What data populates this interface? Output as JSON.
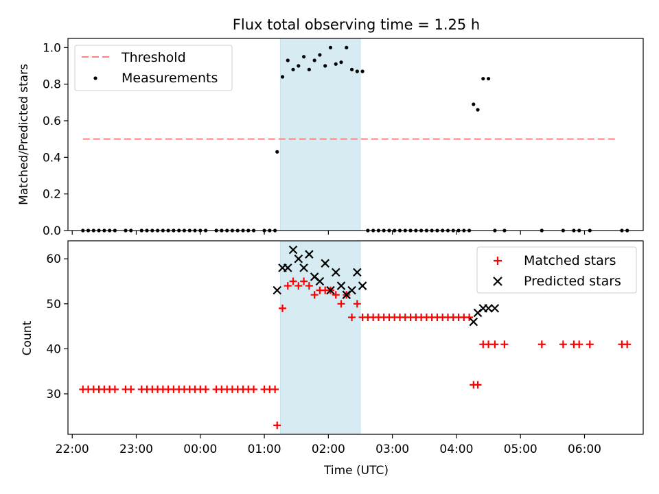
{
  "title": "Flux total observing time = 1.25 h",
  "colors": {
    "threshold": "#ff7f7f",
    "measurement": "#000000",
    "matched": "#ff0000",
    "predicted": "#000000",
    "span": "#add8e6"
  },
  "chart_data": [
    {
      "type": "scatter",
      "ylabel": "Matched/Predicted stars",
      "xlim": [
        "22:00",
        "06:55"
      ],
      "x_time_range": [
        "21:56",
        "06:55"
      ],
      "ylim": [
        0,
        1.05
      ],
      "yticks": [
        0,
        0.2,
        0.4,
        0.6,
        0.8,
        1.0
      ],
      "ytick_labels": [
        "0.0",
        "0.2",
        "0.4",
        "0.6",
        "0.8",
        "1.0"
      ],
      "highlight_span": [
        "01:15",
        "02:30"
      ],
      "legend_position": "upper-left",
      "threshold": {
        "name": "Threshold",
        "y": 0.5,
        "x_start": "22:10",
        "x_end": "06:30"
      },
      "series": [
        {
          "name": "Measurements",
          "x": [
            "22:10",
            "22:15",
            "22:20",
            "22:25",
            "22:30",
            "22:35",
            "22:40",
            "22:50",
            "22:55",
            "23:05",
            "23:10",
            "23:15",
            "23:20",
            "23:25",
            "23:30",
            "23:35",
            "23:40",
            "23:45",
            "23:50",
            "23:55",
            "00:00",
            "00:05",
            "00:15",
            "00:20",
            "00:25",
            "00:30",
            "00:35",
            "00:40",
            "00:45",
            "00:50",
            "01:00",
            "01:05",
            "01:10",
            "01:12",
            "01:17",
            "01:22",
            "01:27",
            "01:32",
            "01:37",
            "01:42",
            "01:47",
            "01:52",
            "01:57",
            "02:02",
            "02:07",
            "02:12",
            "02:17",
            "02:22",
            "02:27",
            "02:32",
            "02:37",
            "02:42",
            "02:47",
            "02:52",
            "02:57",
            "03:02",
            "03:07",
            "03:12",
            "03:17",
            "03:22",
            "03:27",
            "03:32",
            "03:37",
            "03:42",
            "03:47",
            "03:52",
            "03:57",
            "04:02",
            "04:07",
            "04:12",
            "04:16",
            "04:20",
            "04:25",
            "04:30",
            "04:36",
            "04:45",
            "05:20",
            "05:40",
            "05:50",
            "05:55",
            "06:05",
            "06:35",
            "06:40"
          ],
          "y": [
            0,
            0,
            0,
            0,
            0,
            0,
            0,
            0,
            0,
            0,
            0,
            0,
            0,
            0,
            0,
            0,
            0,
            0,
            0,
            0,
            0,
            0,
            0,
            0,
            0,
            0,
            0,
            0,
            0,
            0,
            0,
            0,
            0,
            0.43,
            0.84,
            0.93,
            0.88,
            0.9,
            0.95,
            0.88,
            0.93,
            0.96,
            0.9,
            1.0,
            0.91,
            0.92,
            1.0,
            0.88,
            0.87,
            0.87,
            0,
            0,
            0,
            0,
            0,
            0,
            0,
            0,
            0,
            0,
            0,
            0,
            0,
            0,
            0,
            0,
            0,
            0,
            0,
            0,
            0.69,
            0.66,
            0.83,
            0.83,
            0,
            0,
            0,
            0,
            0,
            0,
            0,
            0,
            0
          ]
        }
      ]
    },
    {
      "type": "scatter",
      "xlabel": "Time (UTC)",
      "ylabel": "Count",
      "xlim": [
        "22:00",
        "06:55"
      ],
      "x_time_range": [
        "21:56",
        "06:55"
      ],
      "ylim": [
        21,
        64
      ],
      "yticks": [
        30,
        40,
        50,
        60
      ],
      "ytick_labels": [
        "30",
        "40",
        "50",
        "60"
      ],
      "xtick_labels": [
        "22:00",
        "23:00",
        "00:00",
        "01:00",
        "02:00",
        "03:00",
        "04:00",
        "05:00",
        "06:00"
      ],
      "highlight_span": [
        "01:15",
        "02:30"
      ],
      "legend_position": "upper-right",
      "series": [
        {
          "name": "Matched stars",
          "marker": "+",
          "x": [
            "22:10",
            "22:15",
            "22:20",
            "22:25",
            "22:30",
            "22:35",
            "22:40",
            "22:50",
            "22:55",
            "23:05",
            "23:10",
            "23:15",
            "23:20",
            "23:25",
            "23:30",
            "23:35",
            "23:40",
            "23:45",
            "23:50",
            "23:55",
            "00:00",
            "00:05",
            "00:15",
            "00:20",
            "00:25",
            "00:30",
            "00:35",
            "00:40",
            "00:45",
            "00:50",
            "01:00",
            "01:05",
            "01:10",
            "01:12",
            "01:17",
            "01:22",
            "01:27",
            "01:32",
            "01:37",
            "01:42",
            "01:47",
            "01:52",
            "01:57",
            "02:02",
            "02:07",
            "02:12",
            "02:17",
            "02:22",
            "02:27",
            "02:32",
            "02:37",
            "02:42",
            "02:47",
            "02:52",
            "02:57",
            "03:02",
            "03:07",
            "03:12",
            "03:17",
            "03:22",
            "03:27",
            "03:32",
            "03:37",
            "03:42",
            "03:47",
            "03:52",
            "03:57",
            "04:02",
            "04:07",
            "04:12",
            "04:16",
            "04:20",
            "04:25",
            "04:30",
            "04:36",
            "04:45",
            "05:20",
            "05:40",
            "05:50",
            "05:55",
            "06:05",
            "06:35",
            "06:40"
          ],
          "y": [
            31,
            31,
            31,
            31,
            31,
            31,
            31,
            31,
            31,
            31,
            31,
            31,
            31,
            31,
            31,
            31,
            31,
            31,
            31,
            31,
            31,
            31,
            31,
            31,
            31,
            31,
            31,
            31,
            31,
            31,
            31,
            31,
            31,
            23,
            49,
            54,
            55,
            54,
            55,
            54,
            52,
            53,
            53,
            53,
            52,
            50,
            52,
            47,
            50,
            47,
            47,
            47,
            47,
            47,
            47,
            47,
            47,
            47,
            47,
            47,
            47,
            47,
            47,
            47,
            47,
            47,
            47,
            47,
            47,
            47,
            32,
            32,
            41,
            41,
            41,
            41,
            41,
            41,
            41,
            41,
            41,
            41,
            41
          ]
        },
        {
          "name": "Predicted stars",
          "marker": "x",
          "x": [
            "01:12",
            "01:17",
            "01:22",
            "01:27",
            "01:32",
            "01:37",
            "01:42",
            "01:47",
            "01:52",
            "01:57",
            "02:02",
            "02:07",
            "02:12",
            "02:17",
            "02:22",
            "02:27",
            "02:32",
            "04:16",
            "04:20",
            "04:25",
            "04:30",
            "04:36"
          ],
          "y": [
            53,
            58,
            58,
            62,
            60,
            58,
            61,
            56,
            55,
            59,
            53,
            57,
            54,
            52,
            53,
            57,
            54,
            46,
            48,
            49,
            49,
            49
          ]
        }
      ]
    }
  ]
}
